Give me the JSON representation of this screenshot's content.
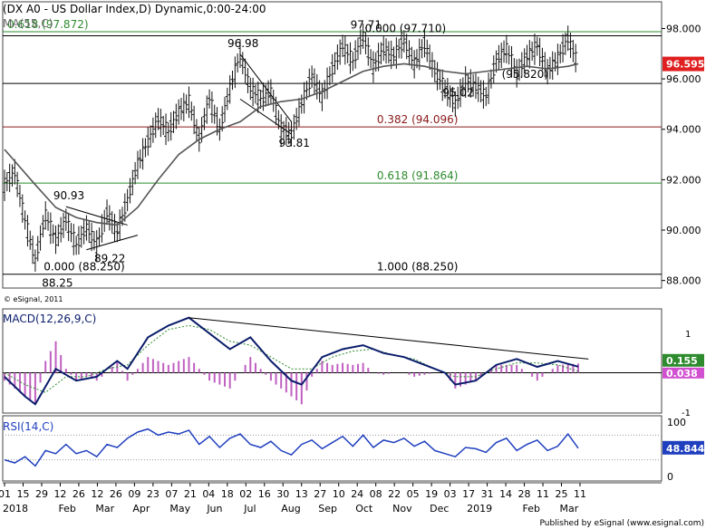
{
  "chart_data": {
    "type": "candlestick",
    "title": "(DX A0 - US Dollar Index,D) Dynamic,0:00-24:00",
    "ma_label": "MA(55,C)",
    "last_price": "96.595",
    "copyright": "© eSignal, 2011",
    "published": "Published by eSignal (www.esignal.com)",
    "price_ylim": [
      87.7,
      98.7
    ],
    "price_ticks": [
      "98.000",
      "96.000",
      "94.000",
      "92.000",
      "90.000",
      "88.000"
    ],
    "x_dates": [
      "01",
      "15",
      "29",
      "12",
      "26",
      "12",
      "26",
      "09",
      "23",
      "07",
      "21",
      "04",
      "18",
      "02",
      "16",
      "30",
      "13",
      "27",
      "10",
      "24",
      "08",
      "22",
      "05",
      "19",
      "03",
      "17",
      "31",
      "14",
      "28",
      "11",
      "25",
      "11"
    ],
    "x_months": [
      {
        "label": "2018",
        "at": 0
      },
      {
        "label": "Feb",
        "at": 3
      },
      {
        "label": "Mar",
        "at": 5
      },
      {
        "label": "Apr",
        "at": 7
      },
      {
        "label": "May",
        "at": 9
      },
      {
        "label": "Jun",
        "at": 11
      },
      {
        "label": "Jul",
        "at": 13
      },
      {
        "label": "Aug",
        "at": 15
      },
      {
        "label": "Sep",
        "at": 17
      },
      {
        "label": "Oct",
        "at": 19
      },
      {
        "label": "Nov",
        "at": 21
      },
      {
        "label": "Dec",
        "at": 23
      },
      {
        "label": "2019",
        "at": 25
      },
      {
        "label": "Feb",
        "at": 28
      },
      {
        "label": "Mar",
        "at": 30
      }
    ],
    "price_path": [
      [
        0,
        91.8
      ],
      [
        1,
        92.3
      ],
      [
        2,
        90.4
      ],
      [
        3,
        88.8
      ],
      [
        4,
        90.6
      ],
      [
        5,
        89.6
      ],
      [
        6,
        90.4
      ],
      [
        7,
        89.4
      ],
      [
        8,
        90.1
      ],
      [
        9,
        89.4
      ],
      [
        10,
        90.7
      ],
      [
        11,
        89.9
      ],
      [
        12,
        91.2
      ],
      [
        13,
        92.6
      ],
      [
        14,
        93.5
      ],
      [
        15,
        94.4
      ],
      [
        16,
        93.9
      ],
      [
        17,
        94.7
      ],
      [
        18,
        95.1
      ],
      [
        19,
        93.6
      ],
      [
        20,
        95.2
      ],
      [
        21,
        94.0
      ],
      [
        22,
        95.6
      ],
      [
        23,
        96.98
      ],
      [
        24,
        95.6
      ],
      [
        25,
        95.2
      ],
      [
        26,
        95.5
      ],
      [
        27,
        94.0
      ],
      [
        28,
        93.81
      ],
      [
        29,
        95.0
      ],
      [
        30,
        96.1
      ],
      [
        31,
        95.3
      ],
      [
        32,
        96.4
      ],
      [
        33,
        97.3
      ],
      [
        34,
        96.7
      ],
      [
        35,
        97.71
      ],
      [
        36,
        96.5
      ],
      [
        37,
        97.2
      ],
      [
        38,
        96.9
      ],
      [
        39,
        97.5
      ],
      [
        40,
        96.6
      ],
      [
        41,
        97.4
      ],
      [
        42,
        96.3
      ],
      [
        43,
        95.6
      ],
      [
        44,
        95.02
      ],
      [
        45,
        95.9
      ],
      [
        46,
        95.7
      ],
      [
        47,
        95.3
      ],
      [
        48,
        96.7
      ],
      [
        49,
        97.2
      ],
      [
        50,
        96.2
      ],
      [
        51,
        96.9
      ],
      [
        52,
        97.3
      ],
      [
        53,
        96.3
      ],
      [
        54,
        96.8
      ],
      [
        55,
        97.6
      ],
      [
        56,
        96.595
      ]
    ],
    "ma_path": [
      [
        0,
        93.2
      ],
      [
        3,
        91.8
      ],
      [
        5,
        90.9
      ],
      [
        7,
        90.5
      ],
      [
        9,
        90.3
      ],
      [
        11,
        90.2
      ],
      [
        13,
        90.9
      ],
      [
        15,
        92.0
      ],
      [
        17,
        93.0
      ],
      [
        19,
        93.6
      ],
      [
        21,
        94.0
      ],
      [
        23,
        94.3
      ],
      [
        25,
        94.9
      ],
      [
        27,
        95.1
      ],
      [
        29,
        95.2
      ],
      [
        31,
        95.5
      ],
      [
        33,
        95.9
      ],
      [
        35,
        96.3
      ],
      [
        37,
        96.5
      ],
      [
        39,
        96.6
      ],
      [
        41,
        96.5
      ],
      [
        43,
        96.3
      ],
      [
        45,
        96.2
      ],
      [
        47,
        96.3
      ],
      [
        49,
        96.4
      ],
      [
        51,
        96.5
      ],
      [
        53,
        96.4
      ],
      [
        55,
        96.5
      ],
      [
        56,
        96.6
      ]
    ],
    "levels": [
      {
        "value": 97.872,
        "color": "#2e8b2e",
        "label": "0.618 (97.872)"
      },
      {
        "value": 97.71,
        "color": "#000000",
        "label": "0.000 (97.710)"
      },
      {
        "value": 95.82,
        "color": "#000000",
        "label": "(95.820)"
      },
      {
        "value": 94.096,
        "color": "#8b1a1a",
        "label": "0.382 (94.096)"
      },
      {
        "value": 91.864,
        "color": "#2e8b2e",
        "label": "0.618 (91.864)"
      },
      {
        "value": 88.25,
        "color": "#000000",
        "label": "0.000 (88.250)",
        "label2": "1.000 (88.250)"
      }
    ],
    "annotations": [
      {
        "text": "97.71",
        "x": 35,
        "y": 97.71
      },
      {
        "text": "96.98",
        "x": 23,
        "y": 96.98
      },
      {
        "text": "95.02",
        "x": 44,
        "y": 95.02
      },
      {
        "text": "93.81",
        "x": 28,
        "y": 93.81
      },
      {
        "text": "90.93",
        "x": 6,
        "y": 90.93
      },
      {
        "text": "89.22",
        "x": 10,
        "y": 89.22
      },
      {
        "text": "88.25",
        "x": 4,
        "y": 88.25
      }
    ],
    "macd": {
      "label": "MACD(12,26,9,C)",
      "value_label": "0.155",
      "signal_label": "0.038",
      "ylim": [
        -1.0,
        1.6
      ],
      "tick_1": "1",
      "tick_neg1": "-1",
      "macd_path": [
        [
          0,
          -0.1
        ],
        [
          2,
          -0.6
        ],
        [
          3,
          -0.8
        ],
        [
          5,
          0.1
        ],
        [
          7,
          -0.2
        ],
        [
          9,
          -0.1
        ],
        [
          11,
          0.3
        ],
        [
          12,
          0.1
        ],
        [
          14,
          0.9
        ],
        [
          16,
          1.2
        ],
        [
          18,
          1.4
        ],
        [
          20,
          1.0
        ],
        [
          22,
          0.6
        ],
        [
          24,
          0.9
        ],
        [
          26,
          0.3
        ],
        [
          28,
          -0.2
        ],
        [
          29,
          -0.3
        ],
        [
          31,
          0.4
        ],
        [
          33,
          0.6
        ],
        [
          35,
          0.7
        ],
        [
          37,
          0.5
        ],
        [
          39,
          0.4
        ],
        [
          41,
          0.2
        ],
        [
          43,
          0.0
        ],
        [
          44,
          -0.3
        ],
        [
          46,
          -0.2
        ],
        [
          48,
          0.2
        ],
        [
          50,
          0.35
        ],
        [
          52,
          0.15
        ],
        [
          54,
          0.3
        ],
        [
          56,
          0.155
        ]
      ],
      "signal_path": [
        [
          0,
          0.0
        ],
        [
          2,
          -0.3
        ],
        [
          4,
          -0.5
        ],
        [
          6,
          -0.1
        ],
        [
          8,
          -0.1
        ],
        [
          10,
          0.1
        ],
        [
          12,
          0.2
        ],
        [
          14,
          0.7
        ],
        [
          16,
          1.1
        ],
        [
          18,
          1.2
        ],
        [
          20,
          1.1
        ],
        [
          22,
          0.8
        ],
        [
          24,
          0.7
        ],
        [
          26,
          0.4
        ],
        [
          28,
          0.1
        ],
        [
          30,
          0.1
        ],
        [
          32,
          0.4
        ],
        [
          34,
          0.55
        ],
        [
          36,
          0.6
        ],
        [
          38,
          0.45
        ],
        [
          40,
          0.35
        ],
        [
          42,
          0.1
        ],
        [
          44,
          -0.1
        ],
        [
          46,
          -0.1
        ],
        [
          48,
          0.1
        ],
        [
          50,
          0.25
        ],
        [
          52,
          0.25
        ],
        [
          54,
          0.2
        ],
        [
          56,
          0.038
        ]
      ],
      "trendline": [
        [
          18,
          1.4
        ],
        [
          57,
          0.35
        ]
      ]
    },
    "rsi": {
      "label": "RSI(14,C)",
      "value_label": "48.844",
      "ylim": [
        0,
        100
      ],
      "tick_100": "100",
      "tick_50": "50",
      "tick_0": "0",
      "path": [
        [
          0,
          30
        ],
        [
          1,
          25
        ],
        [
          2,
          35
        ],
        [
          3,
          20
        ],
        [
          4,
          45
        ],
        [
          5,
          40
        ],
        [
          6,
          55
        ],
        [
          7,
          40
        ],
        [
          8,
          45
        ],
        [
          9,
          35
        ],
        [
          10,
          55
        ],
        [
          11,
          50
        ],
        [
          12,
          65
        ],
        [
          13,
          75
        ],
        [
          14,
          80
        ],
        [
          15,
          70
        ],
        [
          16,
          75
        ],
        [
          17,
          72
        ],
        [
          18,
          78
        ],
        [
          19,
          55
        ],
        [
          20,
          68
        ],
        [
          21,
          50
        ],
        [
          22,
          65
        ],
        [
          23,
          72
        ],
        [
          24,
          55
        ],
        [
          25,
          50
        ],
        [
          26,
          60
        ],
        [
          27,
          45
        ],
        [
          28,
          38
        ],
        [
          29,
          55
        ],
        [
          30,
          62
        ],
        [
          31,
          48
        ],
        [
          32,
          58
        ],
        [
          33,
          68
        ],
        [
          34,
          52
        ],
        [
          35,
          70
        ],
        [
          36,
          50
        ],
        [
          37,
          62
        ],
        [
          38,
          58
        ],
        [
          39,
          65
        ],
        [
          40,
          52
        ],
        [
          41,
          60
        ],
        [
          42,
          45
        ],
        [
          43,
          40
        ],
        [
          44,
          35
        ],
        [
          45,
          50
        ],
        [
          46,
          48
        ],
        [
          47,
          42
        ],
        [
          48,
          58
        ],
        [
          49,
          65
        ],
        [
          50,
          45
        ],
        [
          51,
          55
        ],
        [
          52,
          62
        ],
        [
          53,
          45
        ],
        [
          54,
          52
        ],
        [
          55,
          72
        ],
        [
          56,
          48.8
        ]
      ]
    }
  }
}
